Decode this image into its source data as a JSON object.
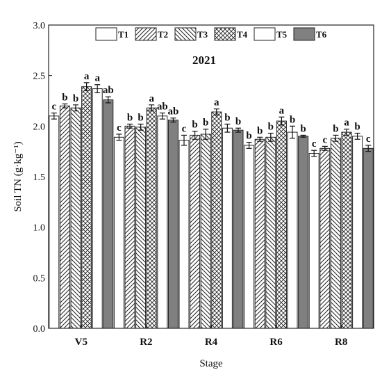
{
  "chart_data": {
    "type": "bar",
    "title": "2021",
    "xlabel": "Stage",
    "ylabel": "Soil TN (g·kg⁻¹)",
    "ylim": [
      0,
      3.0
    ],
    "yticks": [
      "0.0",
      "0.5",
      "1.0",
      "1.5",
      "2.0",
      "2.5",
      "3.0"
    ],
    "grid": false,
    "legend": "top",
    "categories": [
      "V5",
      "R2",
      "R4",
      "R6",
      "R8"
    ],
    "series": [
      {
        "name": "T1",
        "pattern": "plain",
        "color": "#ffffff",
        "values": [
          2.1,
          1.89,
          1.86,
          1.81,
          1.73
        ],
        "errors": [
          0.03,
          0.03,
          0.05,
          0.03,
          0.03
        ],
        "labels": [
          "c",
          "c",
          "c",
          "b",
          "c"
        ]
      },
      {
        "name": "T2",
        "pattern": "forward-hatch",
        "color": "#ffffff",
        "values": [
          2.2,
          2.0,
          1.91,
          1.87,
          1.78
        ],
        "errors": [
          0.02,
          0.02,
          0.04,
          0.02,
          0.02
        ],
        "labels": [
          "b",
          "b",
          "b",
          "b",
          "c"
        ]
      },
      {
        "name": "T3",
        "pattern": "back-hatch",
        "color": "#ffffff",
        "values": [
          2.18,
          1.99,
          1.92,
          1.89,
          1.88
        ],
        "errors": [
          0.03,
          0.03,
          0.05,
          0.04,
          0.03
        ],
        "labels": [
          "b",
          "b",
          "b",
          "b",
          "b"
        ]
      },
      {
        "name": "T4",
        "pattern": "cross-hatch",
        "color": "#ffffff",
        "values": [
          2.39,
          2.18,
          2.14,
          2.05,
          1.94
        ],
        "errors": [
          0.04,
          0.03,
          0.03,
          0.04,
          0.03
        ],
        "labels": [
          "a",
          "a",
          "a",
          "a",
          "a"
        ]
      },
      {
        "name": "T5",
        "pattern": "plain",
        "color": "#ffffff",
        "values": [
          2.37,
          2.1,
          1.98,
          1.94,
          1.9
        ],
        "errors": [
          0.04,
          0.03,
          0.04,
          0.06,
          0.03
        ],
        "labels": [
          "a",
          "ab",
          "b",
          "b",
          "b"
        ]
      },
      {
        "name": "T6",
        "pattern": "solid",
        "color": "#808080",
        "values": [
          2.26,
          2.06,
          1.96,
          1.9,
          1.78
        ],
        "errors": [
          0.03,
          0.02,
          0.02,
          0.01,
          0.03
        ],
        "labels": [
          "ab",
          "ab",
          "b",
          "b",
          "c"
        ]
      }
    ]
  }
}
